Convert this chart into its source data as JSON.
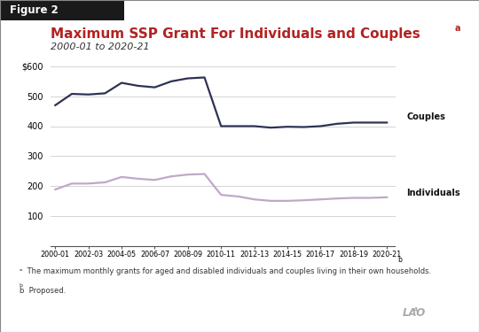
{
  "title": "Maximum SSP Grant For Individuals and Couples",
  "title_superscript": "a",
  "subtitle": "2000-01 to 2020-21",
  "figure_label": "Figure 2",
  "footnote_a": "The maximum monthly grants for aged and disabled individuals and couples living in their own households.",
  "footnote_b": "Proposed.",
  "x_labels": [
    "2000-01",
    "2002-03",
    "2004-05",
    "2006-07",
    "2008-09",
    "2010-11",
    "2012-13",
    "2014-15",
    "2016-17",
    "2018-19",
    "2020-21"
  ],
  "x_indices": [
    0,
    2,
    4,
    6,
    8,
    10,
    12,
    14,
    16,
    18,
    20
  ],
  "couples_x": [
    0,
    1,
    2,
    3,
    4,
    5,
    6,
    7,
    8,
    9,
    10,
    11,
    12,
    13,
    14,
    15,
    16,
    17,
    18,
    19,
    20
  ],
  "couples_y": [
    470,
    508,
    506,
    510,
    545,
    535,
    530,
    550,
    560,
    563,
    400,
    400,
    400,
    395,
    398,
    397,
    400,
    408,
    412,
    412,
    412
  ],
  "individuals_x": [
    0,
    1,
    2,
    3,
    4,
    5,
    6,
    7,
    8,
    9,
    10,
    11,
    12,
    13,
    14,
    15,
    16,
    17,
    18,
    19,
    20
  ],
  "individuals_y": [
    188,
    208,
    208,
    212,
    230,
    224,
    220,
    232,
    238,
    240,
    170,
    165,
    155,
    150,
    150,
    152,
    155,
    158,
    160,
    160,
    162
  ],
  "couples_color": "#2e3354",
  "individuals_color": "#c0a8c8",
  "ylim": [
    0,
    600
  ],
  "yticks": [
    100,
    200,
    300,
    400,
    500,
    600
  ],
  "ytick_labels": [
    "100",
    "200",
    "300",
    "400",
    "500",
    "$600"
  ],
  "title_color": "#b22222",
  "subtitle_color": "#333333",
  "background_color": "#ffffff",
  "grid_color": "#cccccc",
  "couples_label": "Couples",
  "individuals_label": "Individuals",
  "banner_color": "#1a1a1a",
  "banner_text_color": "#ffffff",
  "lao_color": "#aaaaaa"
}
